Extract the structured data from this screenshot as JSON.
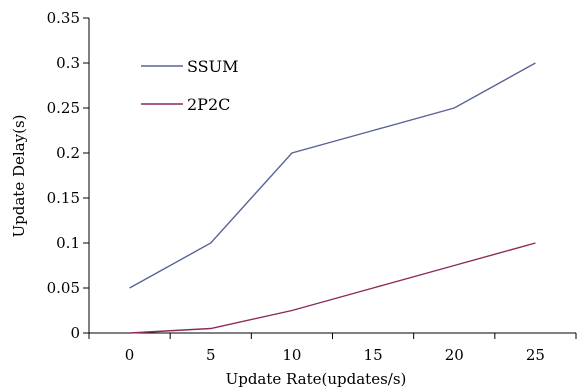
{
  "chart_data": {
    "type": "line",
    "title": "",
    "xlabel": "Update Rate(updates/s)",
    "ylabel": "Update Delay(s)",
    "x": [
      0,
      5,
      10,
      15,
      20,
      25
    ],
    "x_tick_labels": [
      "0",
      "5",
      "10",
      "15",
      "20",
      "25"
    ],
    "y_tick_labels": [
      "0",
      "0.05",
      "0.1",
      "0.15",
      "0.2",
      "0.25",
      "0.3",
      "0.35"
    ],
    "xlim": [
      -2.5,
      27.5
    ],
    "ylim": [
      0,
      0.35
    ],
    "grid": false,
    "legend": "top-left",
    "series": [
      {
        "name": "SSUM",
        "color": "#5a6496",
        "values": [
          0.05,
          0.1,
          0.2,
          0.225,
          0.25,
          0.3
        ]
      },
      {
        "name": "2P2C",
        "color": "#8c2a5a",
        "values": [
          0.0,
          0.005,
          0.025,
          0.05,
          0.075,
          0.1
        ]
      }
    ]
  }
}
